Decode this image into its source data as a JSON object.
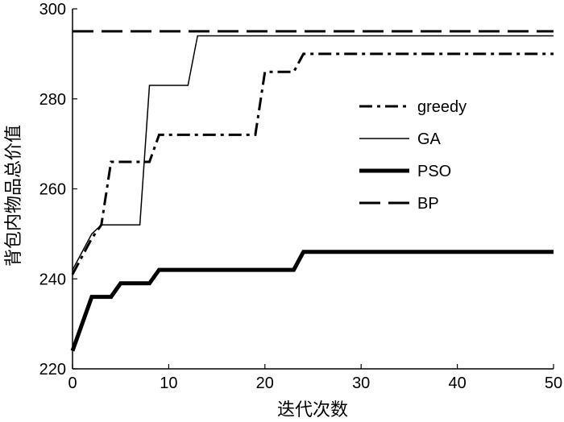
{
  "chart_data": {
    "type": "line",
    "title": "",
    "xlabel": "迭代次数",
    "ylabel": "背包内物品总价值",
    "xlim": [
      0,
      50
    ],
    "ylim": [
      220,
      300
    ],
    "xticks": [
      0,
      10,
      20,
      30,
      40,
      50
    ],
    "yticks": [
      220,
      240,
      260,
      280,
      300
    ],
    "grid": false,
    "legend_position": "center-right",
    "series": [
      {
        "name": "greedy",
        "style": "dashdot",
        "stroke_width": 3,
        "x": [
          0,
          2,
          3,
          4,
          8,
          9,
          19,
          20,
          23,
          24,
          50
        ],
        "y": [
          241,
          249,
          252,
          266,
          266,
          272,
          272,
          286,
          286,
          290,
          290
        ]
      },
      {
        "name": "GA",
        "style": "solid",
        "stroke_width": 1.5,
        "x": [
          0,
          2,
          3,
          7,
          8,
          12,
          13,
          50
        ],
        "y": [
          242,
          250,
          252,
          252,
          283,
          283,
          294,
          294
        ]
      },
      {
        "name": "PSO",
        "style": "solid",
        "stroke_width": 5,
        "x": [
          0,
          2,
          4,
          5,
          8,
          9,
          23,
          24,
          50
        ],
        "y": [
          224,
          236,
          236,
          239,
          239,
          242,
          242,
          246,
          246
        ]
      },
      {
        "name": "BP",
        "style": "dashed",
        "stroke_width": 3,
        "x": [
          0,
          50
        ],
        "y": [
          295,
          295
        ]
      }
    ]
  }
}
